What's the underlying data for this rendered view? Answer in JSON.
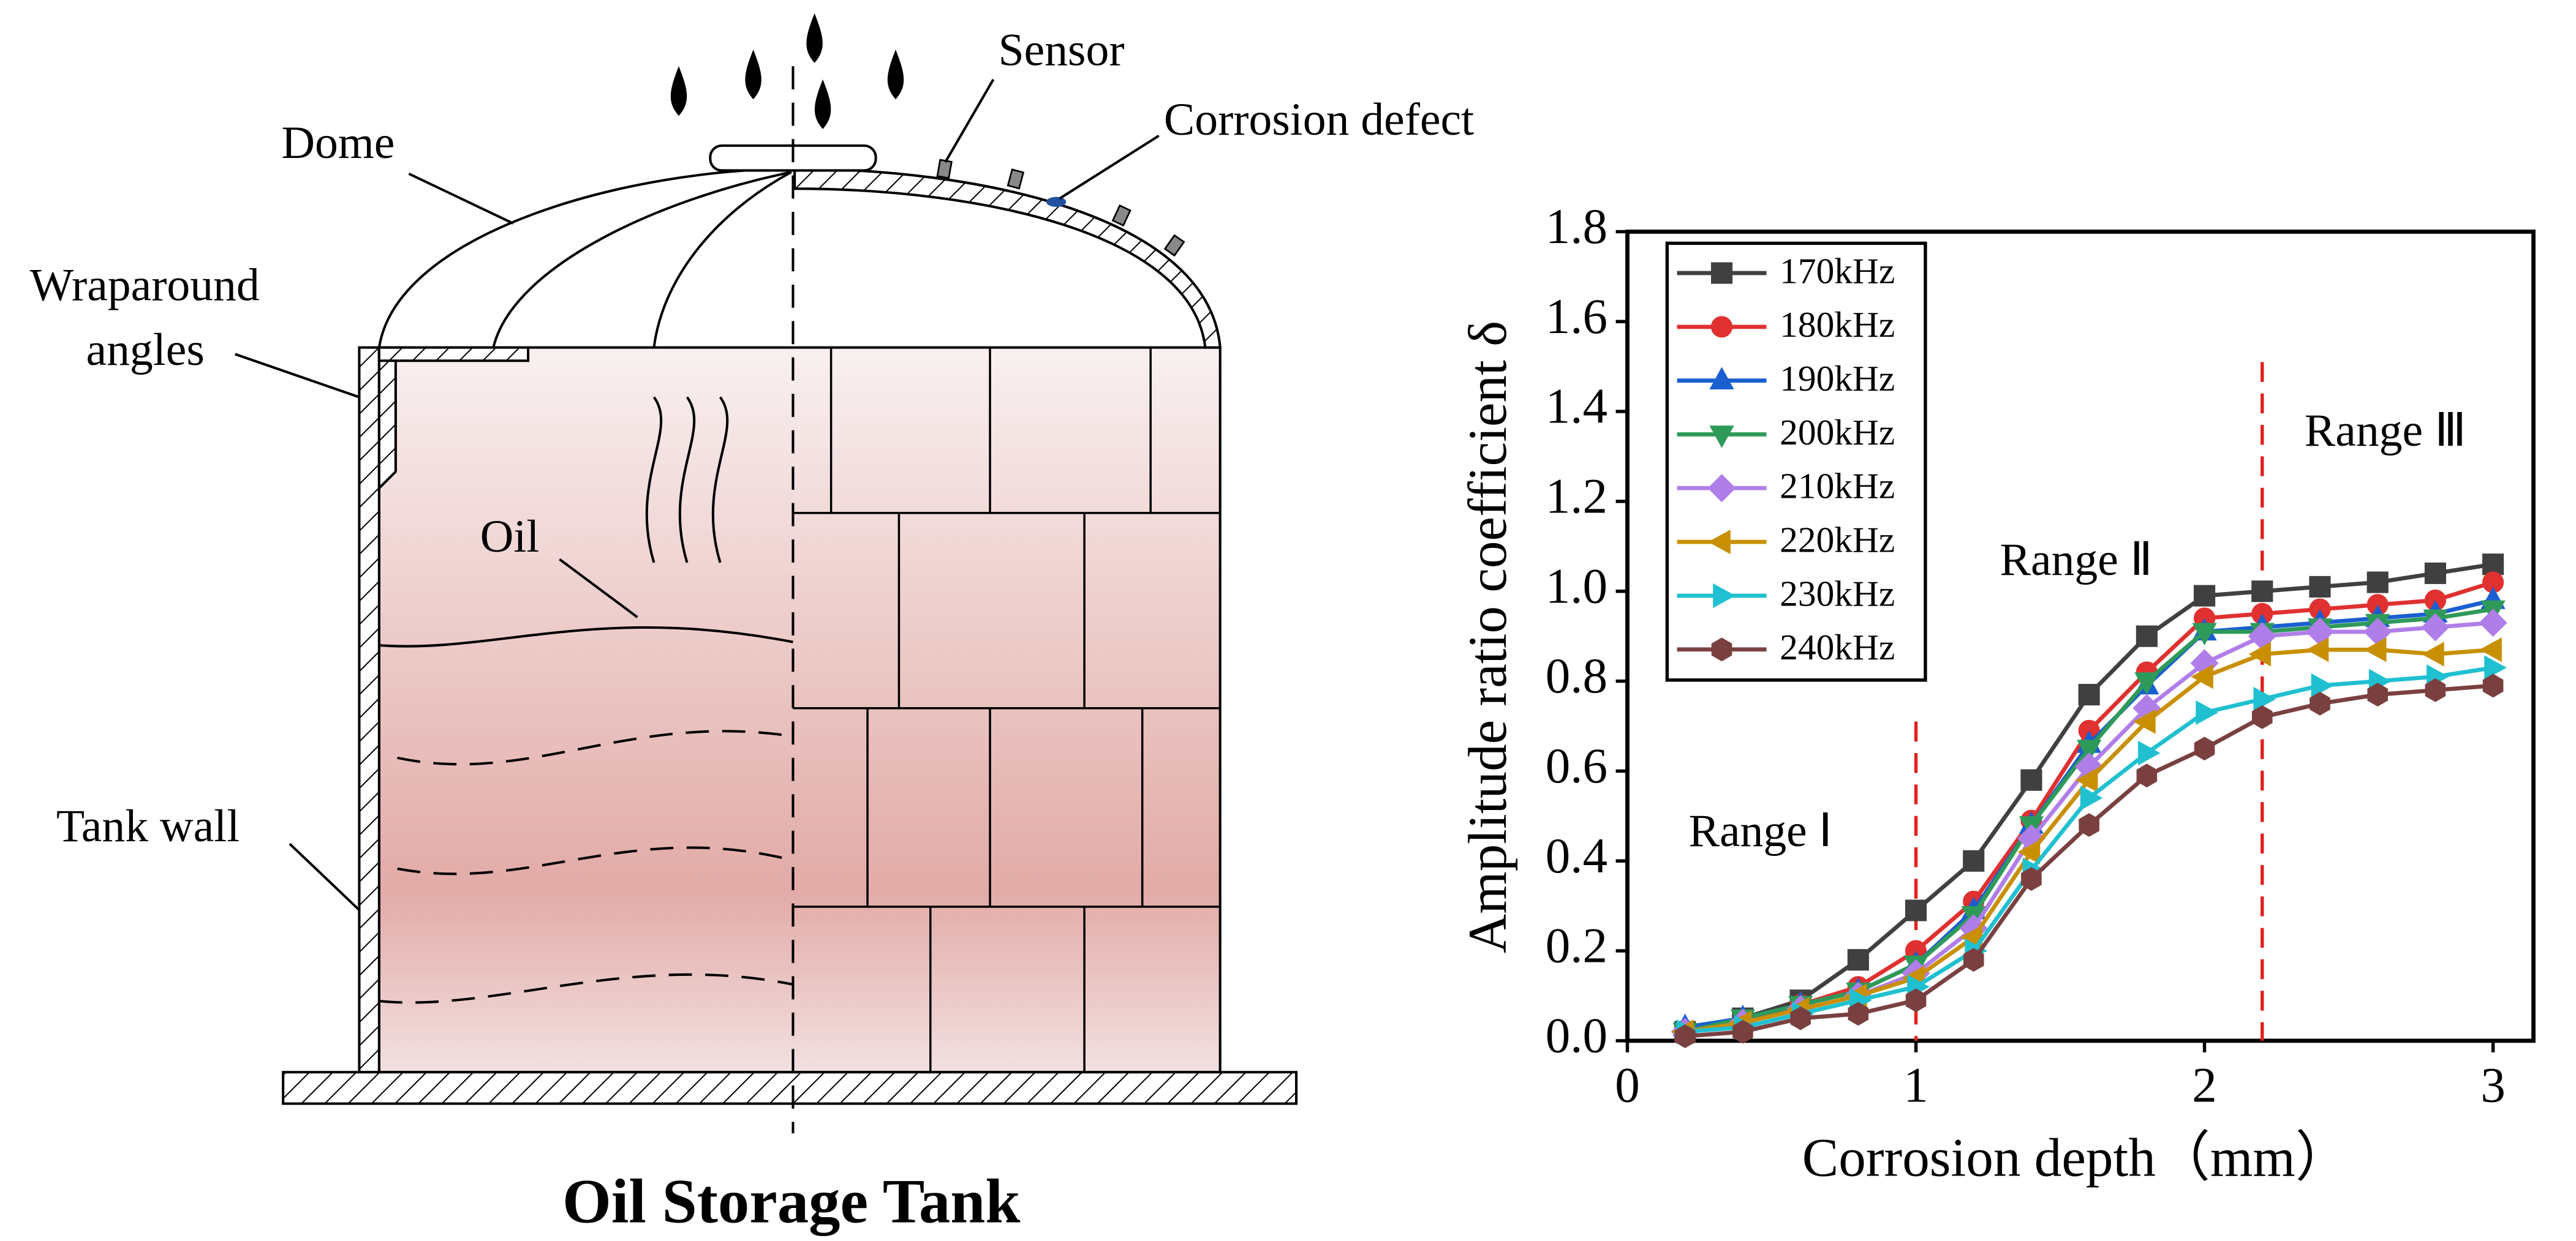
{
  "diagram": {
    "labels": {
      "sensor": "Sensor",
      "corrosion_defect": "Corrosion defect",
      "dome": "Dome",
      "wraparound_angles": [
        "Wraparound",
        "angles"
      ],
      "oil": "Oil",
      "tank_wall": "Tank wall"
    },
    "caption": "Oil Storage Tank"
  },
  "chart_data": {
    "type": "line",
    "x_label": "Corrosion depth（mm）",
    "y_label": "Amplitude ratio coefficient δ",
    "x": [
      0.2,
      0.4,
      0.6,
      0.8,
      1.0,
      1.2,
      1.4,
      1.6,
      1.8,
      2.0,
      2.2,
      2.4,
      2.6,
      2.8,
      3.0
    ],
    "series": [
      {
        "name": "170kHz",
        "color": "#404040",
        "marker": "square",
        "values": [
          0.02,
          0.05,
          0.09,
          0.18,
          0.29,
          0.4,
          0.58,
          0.77,
          0.9,
          0.99,
          1.0,
          1.01,
          1.02,
          1.04,
          1.06
        ]
      },
      {
        "name": "180kHz",
        "color": "#e03030",
        "marker": "circle",
        "values": [
          0.02,
          0.04,
          0.08,
          0.12,
          0.2,
          0.31,
          0.49,
          0.69,
          0.82,
          0.94,
          0.95,
          0.96,
          0.97,
          0.98,
          1.02
        ]
      },
      {
        "name": "190kHz",
        "color": "#1a5fd0",
        "marker": "triangle-up",
        "values": [
          0.03,
          0.05,
          0.08,
          0.11,
          0.17,
          0.29,
          0.48,
          0.66,
          0.79,
          0.91,
          0.92,
          0.93,
          0.94,
          0.95,
          0.98
        ]
      },
      {
        "name": "200kHz",
        "color": "#2e9a5a",
        "marker": "triangle-down",
        "values": [
          0.02,
          0.05,
          0.08,
          0.11,
          0.17,
          0.28,
          0.48,
          0.65,
          0.8,
          0.91,
          0.91,
          0.92,
          0.93,
          0.94,
          0.96
        ]
      },
      {
        "name": "210kHz",
        "color": "#b07ee8",
        "marker": "diamond",
        "values": [
          0.02,
          0.04,
          0.07,
          0.1,
          0.15,
          0.25,
          0.45,
          0.61,
          0.74,
          0.84,
          0.9,
          0.91,
          0.91,
          0.92,
          0.93
        ]
      },
      {
        "name": "220kHz",
        "color": "#c89000",
        "marker": "triangle-left",
        "values": [
          0.02,
          0.04,
          0.07,
          0.1,
          0.14,
          0.23,
          0.42,
          0.58,
          0.71,
          0.81,
          0.86,
          0.87,
          0.87,
          0.86,
          0.87
        ]
      },
      {
        "name": "230kHz",
        "color": "#20c0d0",
        "marker": "triangle-right",
        "values": [
          0.02,
          0.03,
          0.06,
          0.09,
          0.12,
          0.2,
          0.38,
          0.54,
          0.64,
          0.73,
          0.76,
          0.79,
          0.8,
          0.81,
          0.83
        ]
      },
      {
        "name": "240kHz",
        "color": "#7a4040",
        "marker": "hexagon",
        "values": [
          0.01,
          0.02,
          0.05,
          0.06,
          0.09,
          0.18,
          0.36,
          0.48,
          0.59,
          0.65,
          0.72,
          0.75,
          0.77,
          0.78,
          0.79
        ]
      }
    ],
    "xlim": [
      0,
      3.14
    ],
    "xticks": [
      0,
      1,
      2,
      3
    ],
    "ylim": [
      0,
      1.8
    ],
    "yticks": [
      {
        "value": 0,
        "label": "0.0"
      },
      0.2,
      0.4,
      0.6,
      0.8,
      {
        "value": 1,
        "label": "1.0"
      },
      1.2,
      1.4,
      1.6,
      1.8
    ],
    "legend": "upper left",
    "annotations": [
      "Range Ⅰ",
      "Range Ⅱ",
      "Range Ⅲ"
    ],
    "reference_lines": [
      {
        "x": 1.0,
        "y_top": 0.71,
        "color": "#e02020"
      },
      {
        "x": 2.2,
        "y_top": 1.51,
        "color": "#e02020"
      }
    ]
  }
}
